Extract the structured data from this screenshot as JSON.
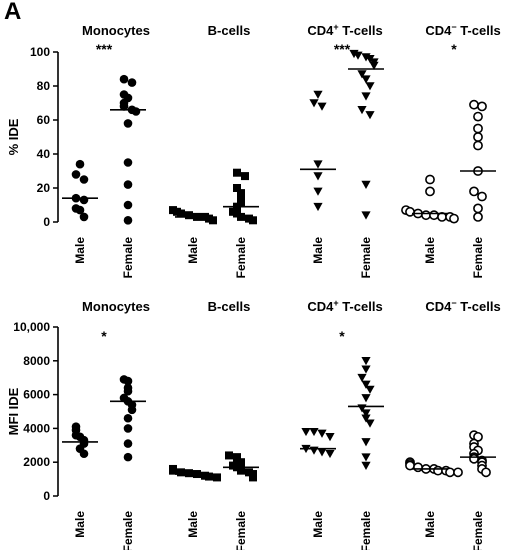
{
  "panel_label": "A",
  "chart_data": [
    {
      "type": "scatter",
      "ylabel": "% IDE",
      "ylim": [
        0,
        100
      ],
      "yticks": [
        "0",
        "20",
        "40",
        "60",
        "80",
        "100"
      ],
      "categories": [
        "Male",
        "Female"
      ],
      "groups": [
        {
          "title_main": "Monocytes",
          "title_sup": "",
          "marker": "circle-filled",
          "significance": "***",
          "male": {
            "values": [
              34,
              28,
              25,
              14,
              13,
              8,
              7,
              3
            ],
            "mean": 14
          },
          "female": {
            "values": [
              84,
              82,
              75,
              73,
              70,
              68,
              66,
              65,
              58,
              35,
              22,
              10,
              1
            ],
            "mean": 66
          }
        },
        {
          "title_main": "B-cells",
          "title_sup": "",
          "marker": "square-filled",
          "significance": "",
          "male": {
            "values": [
              7,
              6,
              5,
              4,
              3,
              3,
              2,
              1
            ],
            "mean": 3
          },
          "female": {
            "values": [
              29,
              27,
              20,
              17,
              15,
              11,
              9,
              6,
              5,
              3,
              2,
              1
            ],
            "mean": 9
          }
        },
        {
          "title_main": "CD4",
          "title_sup": "+",
          "title_rest": " T-cells",
          "marker": "triangle-down-filled",
          "significance": "***",
          "male": {
            "values": [
              75,
              70,
              68,
              34,
              27,
              18,
              9
            ],
            "mean": 31
          },
          "female": {
            "values": [
              99,
              98,
              97,
              96,
              94,
              92,
              87,
              84,
              80,
              74,
              66,
              63,
              22,
              4
            ],
            "mean": 90
          }
        },
        {
          "title_main": "CD4",
          "title_sup": "−",
          "title_rest": " T-cells",
          "marker": "circle-open",
          "significance": "*",
          "male": {
            "values": [
              25,
              18,
              7,
              6,
              5,
              4,
              4,
              3,
              3,
              2
            ],
            "mean": 5
          },
          "female": {
            "values": [
              69,
              68,
              62,
              55,
              50,
              45,
              30,
              18,
              15,
              8,
              3
            ],
            "mean": 30
          }
        }
      ]
    },
    {
      "type": "scatter",
      "ylabel": "MFI IDE",
      "ylim": [
        0,
        10000
      ],
      "yticks": [
        "0",
        "2000",
        "4000",
        "6000",
        "8000",
        "10,000"
      ],
      "categories": [
        "Male",
        "Female"
      ],
      "groups": [
        {
          "title_main": "Monocytes",
          "title_sup": "",
          "marker": "circle-filled",
          "significance": "*",
          "male": {
            "values": [
              4100,
              3900,
              3600,
              3500,
              3300,
              3100,
              2800,
              2500
            ],
            "mean": 3200
          },
          "female": {
            "values": [
              6900,
              6800,
              6400,
              6200,
              5800,
              5600,
              5400,
              5100,
              4600,
              4000,
              3100,
              2300
            ],
            "mean": 5600
          }
        },
        {
          "title_main": "B-cells",
          "title_sup": "",
          "marker": "square-filled",
          "significance": "",
          "male": {
            "values": [
              1600,
              1500,
              1400,
              1350,
              1300,
              1200,
              1150,
              1100
            ],
            "mean": 1300
          },
          "female": {
            "values": [
              2400,
              2300,
              2100,
              2000,
              1800,
              1700,
              1600,
              1500,
              1400,
              1300,
              1100
            ],
            "mean": 1700
          }
        },
        {
          "title_main": "CD4",
          "title_sup": "+",
          "title_rest": " T-cells",
          "marker": "triangle-down-filled",
          "significance": "*",
          "male": {
            "values": [
              3800,
              3800,
              3700,
              3500,
              2800,
              2700,
              2600,
              2500
            ],
            "mean": 2800
          },
          "female": {
            "values": [
              8000,
              7500,
              7000,
              6600,
              6300,
              5800,
              5200,
              4900,
              4600,
              4300,
              3200,
              2300,
              1800
            ],
            "mean": 5300
          }
        },
        {
          "title_main": "CD4",
          "title_sup": "−",
          "title_rest": " T-cells",
          "marker": "circle-open",
          "significance": "",
          "male": {
            "values": [
              2000,
              1900,
              1800,
              1700,
              1600,
              1600,
              1500,
              1500,
              1400,
              1400
            ],
            "mean": 1600
          },
          "female": {
            "values": [
              3600,
              3500,
              3100,
              2900,
              2700,
              2500,
              2300,
              2200,
              2100,
              2000,
              1800,
              1600,
              1400
            ],
            "mean": 2300
          }
        }
      ]
    }
  ]
}
